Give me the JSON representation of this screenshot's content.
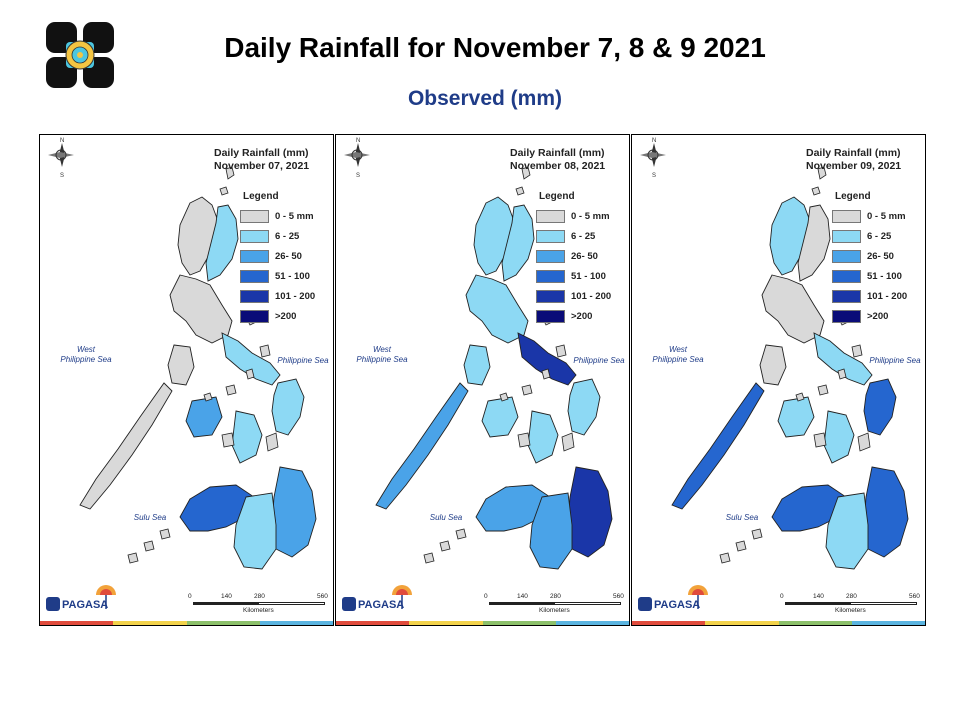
{
  "header": {
    "title": "Daily Rainfall for November 7, 8 & 9  2021",
    "subtitle": "Observed (mm)"
  },
  "legend_title": "Legend",
  "legend": [
    {
      "label": "0 - 5 mm",
      "color": "#d9d9d9"
    },
    {
      "label": "6 - 25",
      "color": "#8dd9f4"
    },
    {
      "label": "26- 50",
      "color": "#4aa3e8"
    },
    {
      "label": "51 - 100",
      "color": "#2566cf"
    },
    {
      "label": "101 - 200",
      "color": "#1a36a8"
    },
    {
      "label": ">200",
      "color": "#0a0c78"
    }
  ],
  "seas": {
    "west": "West\nPhilippine Sea",
    "east": "Philippine Sea",
    "sulu": "Sulu Sea"
  },
  "scale": {
    "ticks": [
      "0",
      "140",
      "280",
      "560"
    ],
    "unit": "Kilometers"
  },
  "agency": "PAGASA",
  "compass": {
    "n": "N",
    "s": "S"
  },
  "stripe_colors": [
    "#e04b3c",
    "#f2d24b",
    "#8cc06a",
    "#5ab4e0"
  ],
  "panels": [
    {
      "title_line1": "Daily Rainfall (mm)",
      "title_line2": "November 07, 2021",
      "levels": {
        "luzon_north": 0,
        "cagayan_valley": 1,
        "luzon_central": 0,
        "bicol": 1,
        "samar": 1,
        "mindoro": 0,
        "panay": 2,
        "negros": 1,
        "palawan": 0,
        "mindanao_west": 3,
        "mindanao_east": 2,
        "mindanao_south": 1
      }
    },
    {
      "title_line1": "Daily Rainfall (mm)",
      "title_line2": "November 08, 2021",
      "levels": {
        "luzon_north": 1,
        "cagayan_valley": 1,
        "luzon_central": 1,
        "bicol": 4,
        "samar": 1,
        "mindoro": 1,
        "panay": 1,
        "negros": 1,
        "palawan": 2,
        "mindanao_west": 2,
        "mindanao_east": 4,
        "mindanao_south": 2
      }
    },
    {
      "title_line1": "Daily Rainfall (mm)",
      "title_line2": "November 09, 2021",
      "levels": {
        "luzon_north": 1,
        "cagayan_valley": 0,
        "luzon_central": 0,
        "bicol": 1,
        "samar": 3,
        "mindoro": 0,
        "panay": 1,
        "negros": 1,
        "palawan": 3,
        "mindanao_west": 3,
        "mindanao_east": 3,
        "mindanao_south": 1
      }
    }
  ]
}
